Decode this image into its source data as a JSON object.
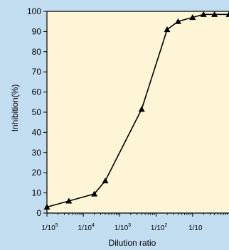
{
  "colors": {
    "outer_background": "#c2dcf0",
    "plot_background": "#fdf5d6",
    "line": "#000000"
  },
  "chart_data": {
    "type": "line",
    "xlabel": "Dilution ratio",
    "ylabel": "Inhibition(%)",
    "x_scale": "log",
    "xlim": [
      1e-05,
      1
    ],
    "ylim": [
      0,
      100
    ],
    "y_ticks": [
      0,
      10,
      20,
      30,
      40,
      50,
      60,
      70,
      80,
      90,
      100
    ],
    "x_ticks": [
      {
        "value": 1e-05,
        "base": "1/10",
        "exp": "5"
      },
      {
        "value": 0.0001,
        "base": "1/10",
        "exp": "4"
      },
      {
        "value": 0.001,
        "base": "1/10",
        "exp": "3"
      },
      {
        "value": 0.01,
        "base": "1/10",
        "exp": "2"
      },
      {
        "value": 0.1,
        "base": "1/10",
        "exp": ""
      }
    ],
    "grid": false,
    "marker": "triangle",
    "series": [
      {
        "x": [
          1e-05,
          4e-05,
          0.0002,
          0.0004,
          0.004,
          0.02,
          0.04,
          0.1,
          0.2,
          0.4,
          1
        ],
        "y": [
          3,
          6,
          9.5,
          16,
          51.5,
          91,
          95,
          97,
          98.5,
          98.5,
          98.5
        ]
      }
    ]
  }
}
